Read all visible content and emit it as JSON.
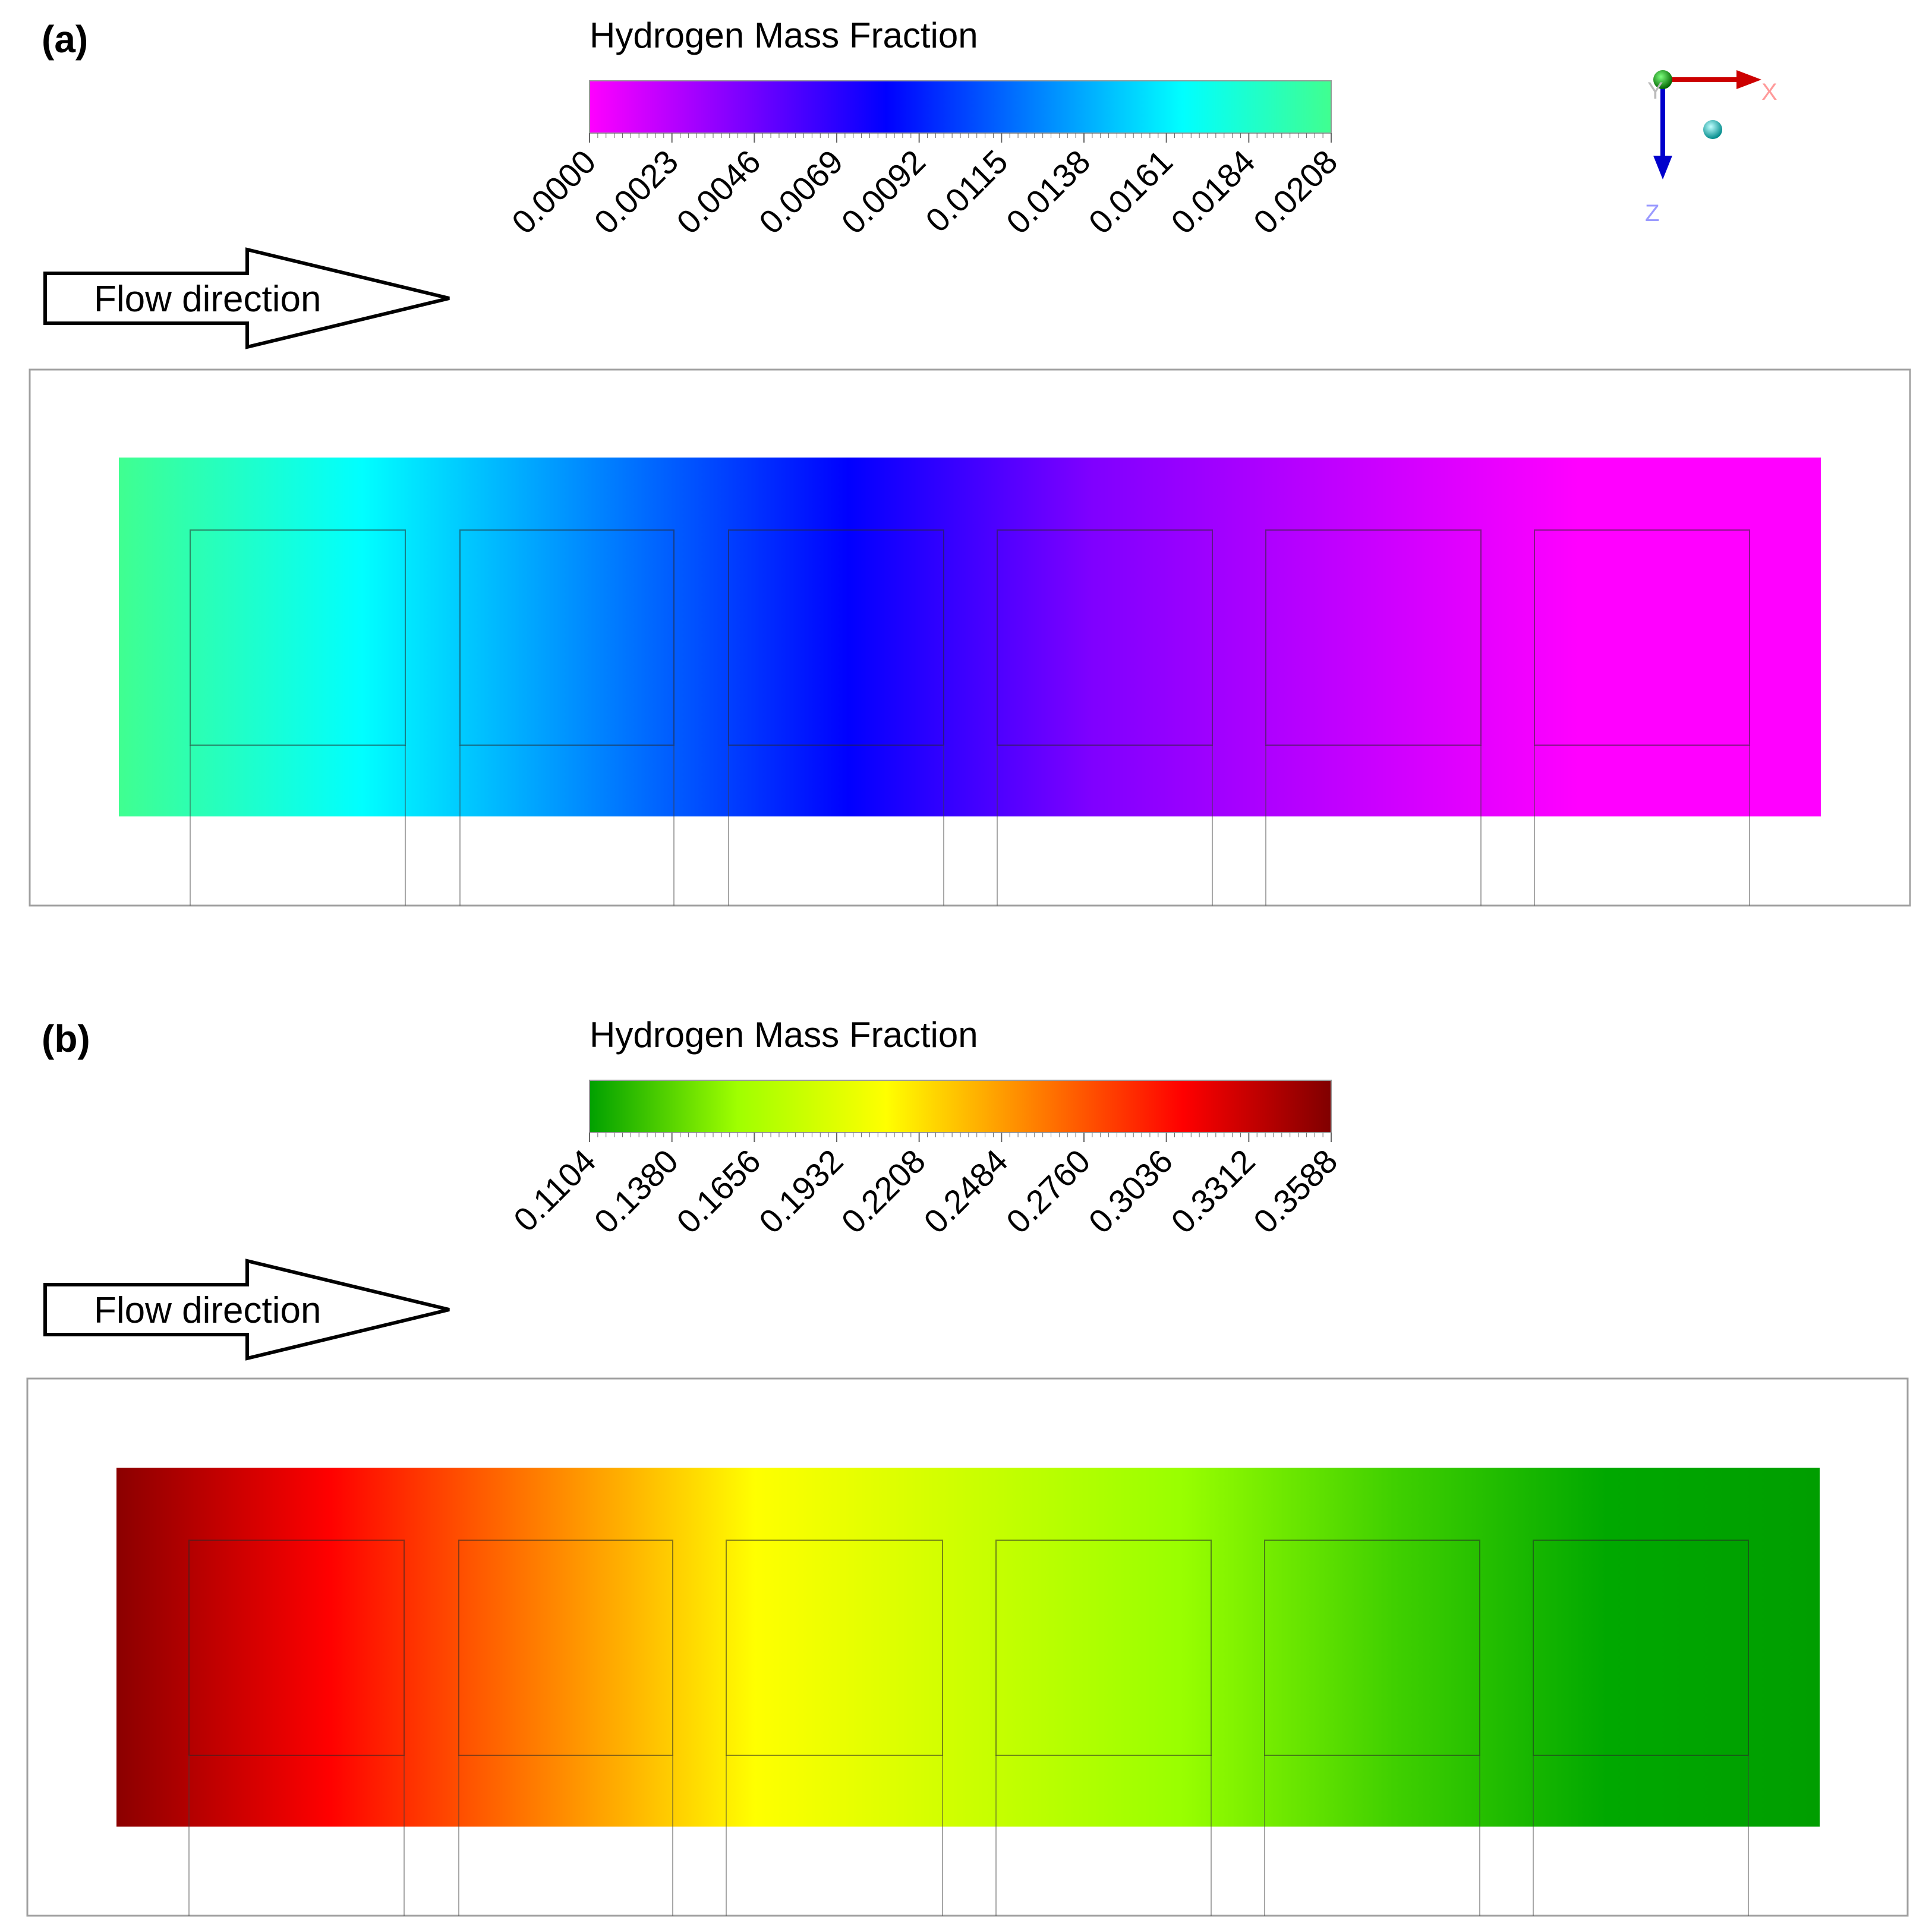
{
  "panels": [
    {
      "label": "(a)",
      "colorbar": {
        "title": "Hydrogen Mass Fraction",
        "tick_labels": [
          "0.0000",
          "0.0023",
          "0.0046",
          "0.0069",
          "0.0092",
          "0.0115",
          "0.0138",
          "0.0161",
          "0.0184",
          "0.0208"
        ],
        "min": 0.0,
        "max": 0.0208,
        "colormap": [
          "#ff00ff",
          "#7f00ff",
          "#0000ff",
          "#0080ff",
          "#00ffff",
          "#40ff90"
        ]
      },
      "flow_label": "Flow direction",
      "field_gradient_left_to_right": [
        "#40ff90",
        "#00ffff",
        "#0080ff",
        "#0000ff",
        "#7f00ff",
        "#c000ff",
        "#ff00ff",
        "#ff00ff"
      ]
    },
    {
      "label": "(b)",
      "colorbar": {
        "title": "Hydrogen Mass Fraction",
        "tick_labels": [
          "0.1104",
          "0.1380",
          "0.1656",
          "0.1932",
          "0.2208",
          "0.2484",
          "0.2760",
          "0.3036",
          "0.3312",
          "0.3588"
        ],
        "min": 0.1104,
        "max": 0.3588,
        "colormap": [
          "#00a000",
          "#a0ff00",
          "#ffff00",
          "#ff8000",
          "#ff0000",
          "#800000"
        ]
      },
      "flow_label": "Flow direction",
      "field_gradient_left_to_right": [
        "#8b0000",
        "#ff0000",
        "#ff8000",
        "#ffff00",
        "#ccff00",
        "#99ff00",
        "#40d000",
        "#00a800",
        "#009e00"
      ]
    }
  ],
  "axes_triad": {
    "x_label": "X",
    "z_label": "Z",
    "hidden_label": "Y",
    "x_color": "#cc0000",
    "z_color": "#0000cc"
  }
}
